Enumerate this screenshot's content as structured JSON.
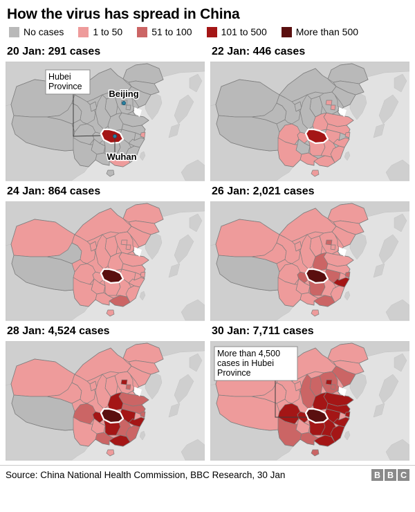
{
  "title": "How the virus has spread in China",
  "legend": {
    "items": [
      {
        "category": "none",
        "label": "No cases",
        "color": "#b9b9b9"
      },
      {
        "category": "c1_50",
        "label": "1 to 50",
        "color": "#ee9b9b"
      },
      {
        "category": "c51_100",
        "label": "51 to 100",
        "color": "#cb6565"
      },
      {
        "category": "c101_500",
        "label": "101 to 500",
        "color": "#a41616"
      },
      {
        "category": "c500plus",
        "label": "More than 500",
        "color": "#5a0f0f"
      }
    ]
  },
  "palette": {
    "none": "#b9b9b9",
    "c1_50": "#ee9b9b",
    "c51_100": "#cb6565",
    "c101_500": "#a41616",
    "c500plus": "#5a0f0f"
  },
  "map_colors": {
    "sea": "#e2e2e2",
    "foreign_land": "#cfcfcf",
    "border": "#7e7e7e",
    "hubei_outline": "#ffffff",
    "bohai_sea": "#ffffff",
    "city_dot": "#2980a0",
    "city_dot_ring": "#14506b",
    "leader_line": "#3c3c3c",
    "callout_border": "#8c8c8c",
    "callout_bg": "#ffffff"
  },
  "footer": {
    "source": "Source: China National Health Commission, BBC Research, 30 Jan",
    "logo_letters": [
      "B",
      "B",
      "C"
    ]
  },
  "chart_data": {
    "type": "heatmap",
    "subtype": "choropleth-small-multiples",
    "region": "China provinces",
    "title": "How the virus has spread in China",
    "legend_position": "top",
    "categories": [
      "No cases",
      "1 to 50",
      "51 to 100",
      "101 to 500",
      "More than 500"
    ],
    "category_labels": {
      "none": "No cases",
      "c1_50": "1 to 50",
      "c51_100": "51 to 100",
      "c101_500": "101 to 500",
      "c500plus": "More than 500"
    },
    "panels": [
      {
        "id": "20-jan",
        "label": "20 Jan: 291 cases",
        "date": "20 Jan",
        "total_cases": 291,
        "default_category": "none",
        "provinces": {
          "hubei": "c101_500",
          "guangdong": "c1_50",
          "shanghai": "c1_50"
        },
        "callout": {
          "lines": [
            "Hubei",
            "Province"
          ]
        },
        "city_labels": [
          "Beijing",
          "Wuhan"
        ]
      },
      {
        "id": "22-jan",
        "label": "22 Jan: 446 cases",
        "date": "22 Jan",
        "total_cases": 446,
        "default_category": "none",
        "provinces": {
          "hubei": "c101_500",
          "sichuan": "c1_50",
          "chongqing": "c1_50",
          "yunnan": "c1_50",
          "henan": "c1_50",
          "hunan": "c1_50",
          "jiangxi": "c1_50",
          "zhejiang": "c1_50",
          "fujian": "c1_50",
          "guangdong": "c1_50",
          "guangxi": "c1_50",
          "shandong": "c1_50",
          "anhui": "c1_50",
          "jiangsu": "c1_50",
          "shanghai": "c1_50",
          "beijing": "c1_50",
          "tianjin": "c1_50",
          "hainan": "c1_50"
        }
      },
      {
        "id": "24-jan",
        "label": "24 Jan: 864 cases",
        "date": "24 Jan",
        "total_cases": 864,
        "default_category": "c1_50",
        "provinces": {
          "hubei": "c500plus",
          "guangdong": "c51_100",
          "tibet": "none",
          "qinghai": "none"
        }
      },
      {
        "id": "26-jan",
        "label": "26 Jan: 2,021 cases",
        "date": "26 Jan",
        "total_cases": 2021,
        "default_category": "c1_50",
        "provinces": {
          "hubei": "c500plus",
          "zhejiang": "c101_500",
          "henan": "c51_100",
          "hunan": "c51_100",
          "anhui": "c51_100",
          "guangdong": "c51_100",
          "chongqing": "c51_100",
          "shanghai": "c51_100",
          "beijing": "c51_100",
          "tibet": "none"
        }
      },
      {
        "id": "28-jan",
        "label": "28 Jan: 4,524 cases",
        "date": "28 Jan",
        "total_cases": 4524,
        "default_category": "c1_50",
        "provinces": {
          "hubei": "c500plus",
          "henan": "c101_500",
          "hunan": "c101_500",
          "anhui": "c101_500",
          "zhejiang": "c101_500",
          "guangdong": "c101_500",
          "chongqing": "c101_500",
          "beijing": "c101_500",
          "sichuan": "c51_100",
          "shandong": "c51_100",
          "jiangsu": "c51_100",
          "jiangxi": "c51_100",
          "fujian": "c51_100",
          "guangxi": "c51_100",
          "shanghai": "c51_100",
          "tianjin": "c51_100",
          "tibet": "none"
        }
      },
      {
        "id": "30-jan",
        "label": "30 Jan: 7,711 cases",
        "date": "30 Jan",
        "total_cases": 7711,
        "default_category": "c1_50",
        "provinces": {
          "hubei": "c500plus",
          "sichuan": "c101_500",
          "chongqing": "c101_500",
          "henan": "c101_500",
          "hunan": "c101_500",
          "anhui": "c101_500",
          "jiangxi": "c101_500",
          "zhejiang": "c101_500",
          "jiangsu": "c101_500",
          "shanghai": "c101_500",
          "shandong": "c101_500",
          "fujian": "c101_500",
          "guangdong": "c101_500",
          "beijing": "c101_500",
          "shaanxi": "c51_100",
          "shanxi": "c51_100",
          "hebei": "c51_100",
          "yunnan": "c51_100",
          "guangxi": "c51_100",
          "hainan": "c51_100",
          "tianjin": "c51_100",
          "liaoning": "c51_100"
        },
        "callout": {
          "lines": [
            "More than 4,500",
            "cases in Hubei",
            "Province"
          ]
        }
      }
    ]
  }
}
